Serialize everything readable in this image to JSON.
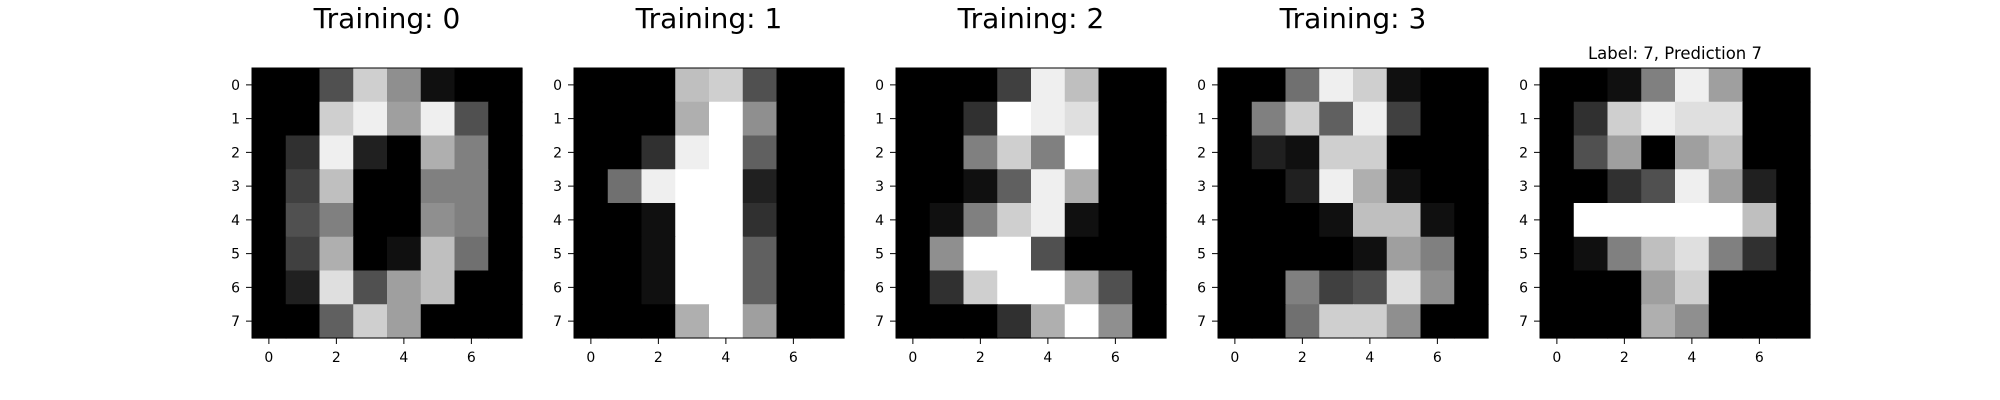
{
  "chart_data": [
    {
      "type": "heatmap",
      "title": "Training: 0",
      "colormap": "gray",
      "value_range": [
        0,
        16
      ],
      "xticks": [
        0,
        2,
        4,
        6
      ],
      "yticks": [
        0,
        1,
        2,
        3,
        4,
        5,
        6,
        7
      ],
      "xlim": [
        -0.5,
        7.5
      ],
      "ylim": [
        7.5,
        -0.5
      ],
      "grid": false,
      "values": [
        [
          0,
          0,
          5,
          13,
          9,
          1,
          0,
          0
        ],
        [
          0,
          0,
          13,
          15,
          10,
          15,
          5,
          0
        ],
        [
          0,
          3,
          15,
          2,
          0,
          11,
          8,
          0
        ],
        [
          0,
          4,
          12,
          0,
          0,
          8,
          8,
          0
        ],
        [
          0,
          5,
          8,
          0,
          0,
          9,
          8,
          0
        ],
        [
          0,
          4,
          11,
          0,
          1,
          12,
          7,
          0
        ],
        [
          0,
          2,
          14,
          5,
          10,
          12,
          0,
          0
        ],
        [
          0,
          0,
          6,
          13,
          10,
          0,
          0,
          0
        ]
      ]
    },
    {
      "type": "heatmap",
      "title": "Training: 1",
      "colormap": "gray",
      "value_range": [
        0,
        16
      ],
      "xticks": [
        0,
        2,
        4,
        6
      ],
      "yticks": [
        0,
        1,
        2,
        3,
        4,
        5,
        6,
        7
      ],
      "xlim": [
        -0.5,
        7.5
      ],
      "ylim": [
        7.5,
        -0.5
      ],
      "grid": false,
      "values": [
        [
          0,
          0,
          0,
          12,
          13,
          5,
          0,
          0
        ],
        [
          0,
          0,
          0,
          11,
          16,
          9,
          0,
          0
        ],
        [
          0,
          0,
          3,
          15,
          16,
          6,
          0,
          0
        ],
        [
          0,
          7,
          15,
          16,
          16,
          2,
          0,
          0
        ],
        [
          0,
          0,
          1,
          16,
          16,
          3,
          0,
          0
        ],
        [
          0,
          0,
          1,
          16,
          16,
          6,
          0,
          0
        ],
        [
          0,
          0,
          1,
          16,
          16,
          6,
          0,
          0
        ],
        [
          0,
          0,
          0,
          11,
          16,
          10,
          0,
          0
        ]
      ]
    },
    {
      "type": "heatmap",
      "title": "Training: 2",
      "colormap": "gray",
      "value_range": [
        0,
        16
      ],
      "xticks": [
        0,
        2,
        4,
        6
      ],
      "yticks": [
        0,
        1,
        2,
        3,
        4,
        5,
        6,
        7
      ],
      "xlim": [
        -0.5,
        7.5
      ],
      "ylim": [
        7.5,
        -0.5
      ],
      "grid": false,
      "values": [
        [
          0,
          0,
          0,
          4,
          15,
          12,
          0,
          0
        ],
        [
          0,
          0,
          3,
          16,
          15,
          14,
          0,
          0
        ],
        [
          0,
          0,
          8,
          13,
          8,
          16,
          0,
          0
        ],
        [
          0,
          0,
          1,
          6,
          15,
          11,
          0,
          0
        ],
        [
          0,
          1,
          8,
          13,
          15,
          1,
          0,
          0
        ],
        [
          0,
          9,
          16,
          16,
          5,
          0,
          0,
          0
        ],
        [
          0,
          3,
          13,
          16,
          16,
          11,
          5,
          0
        ],
        [
          0,
          0,
          0,
          3,
          11,
          16,
          9,
          0
        ]
      ]
    },
    {
      "type": "heatmap",
      "title": "Training: 3",
      "colormap": "gray",
      "value_range": [
        0,
        16
      ],
      "xticks": [
        0,
        2,
        4,
        6
      ],
      "yticks": [
        0,
        1,
        2,
        3,
        4,
        5,
        6,
        7
      ],
      "xlim": [
        -0.5,
        7.5
      ],
      "ylim": [
        7.5,
        -0.5
      ],
      "grid": false,
      "values": [
        [
          0,
          0,
          7,
          15,
          13,
          1,
          0,
          0
        ],
        [
          0,
          8,
          13,
          6,
          15,
          4,
          0,
          0
        ],
        [
          0,
          2,
          1,
          13,
          13,
          0,
          0,
          0
        ],
        [
          0,
          0,
          2,
          15,
          11,
          1,
          0,
          0
        ],
        [
          0,
          0,
          0,
          1,
          12,
          12,
          1,
          0
        ],
        [
          0,
          0,
          0,
          0,
          1,
          10,
          8,
          0
        ],
        [
          0,
          0,
          8,
          4,
          5,
          14,
          9,
          0
        ],
        [
          0,
          0,
          7,
          13,
          13,
          9,
          0,
          0
        ]
      ]
    },
    {
      "type": "heatmap",
      "title": "Label: 7, Prediction 7",
      "colormap": "gray",
      "value_range": [
        0,
        16
      ],
      "xticks": [
        0,
        2,
        4,
        6
      ],
      "yticks": [
        0,
        1,
        2,
        3,
        4,
        5,
        6,
        7
      ],
      "xlim": [
        -0.5,
        7.5
      ],
      "ylim": [
        7.5,
        -0.5
      ],
      "grid": false,
      "values": [
        [
          0,
          0,
          1,
          8,
          15,
          10,
          0,
          0
        ],
        [
          0,
          3,
          13,
          15,
          14,
          14,
          0,
          0
        ],
        [
          0,
          5,
          10,
          0,
          10,
          12,
          0,
          0
        ],
        [
          0,
          0,
          3,
          5,
          15,
          10,
          2,
          0
        ],
        [
          0,
          16,
          16,
          16,
          16,
          16,
          12,
          0
        ],
        [
          0,
          1,
          8,
          12,
          14,
          8,
          3,
          0
        ],
        [
          0,
          0,
          0,
          10,
          13,
          0,
          0,
          0
        ],
        [
          0,
          0,
          0,
          11,
          9,
          0,
          0,
          0
        ]
      ]
    }
  ]
}
